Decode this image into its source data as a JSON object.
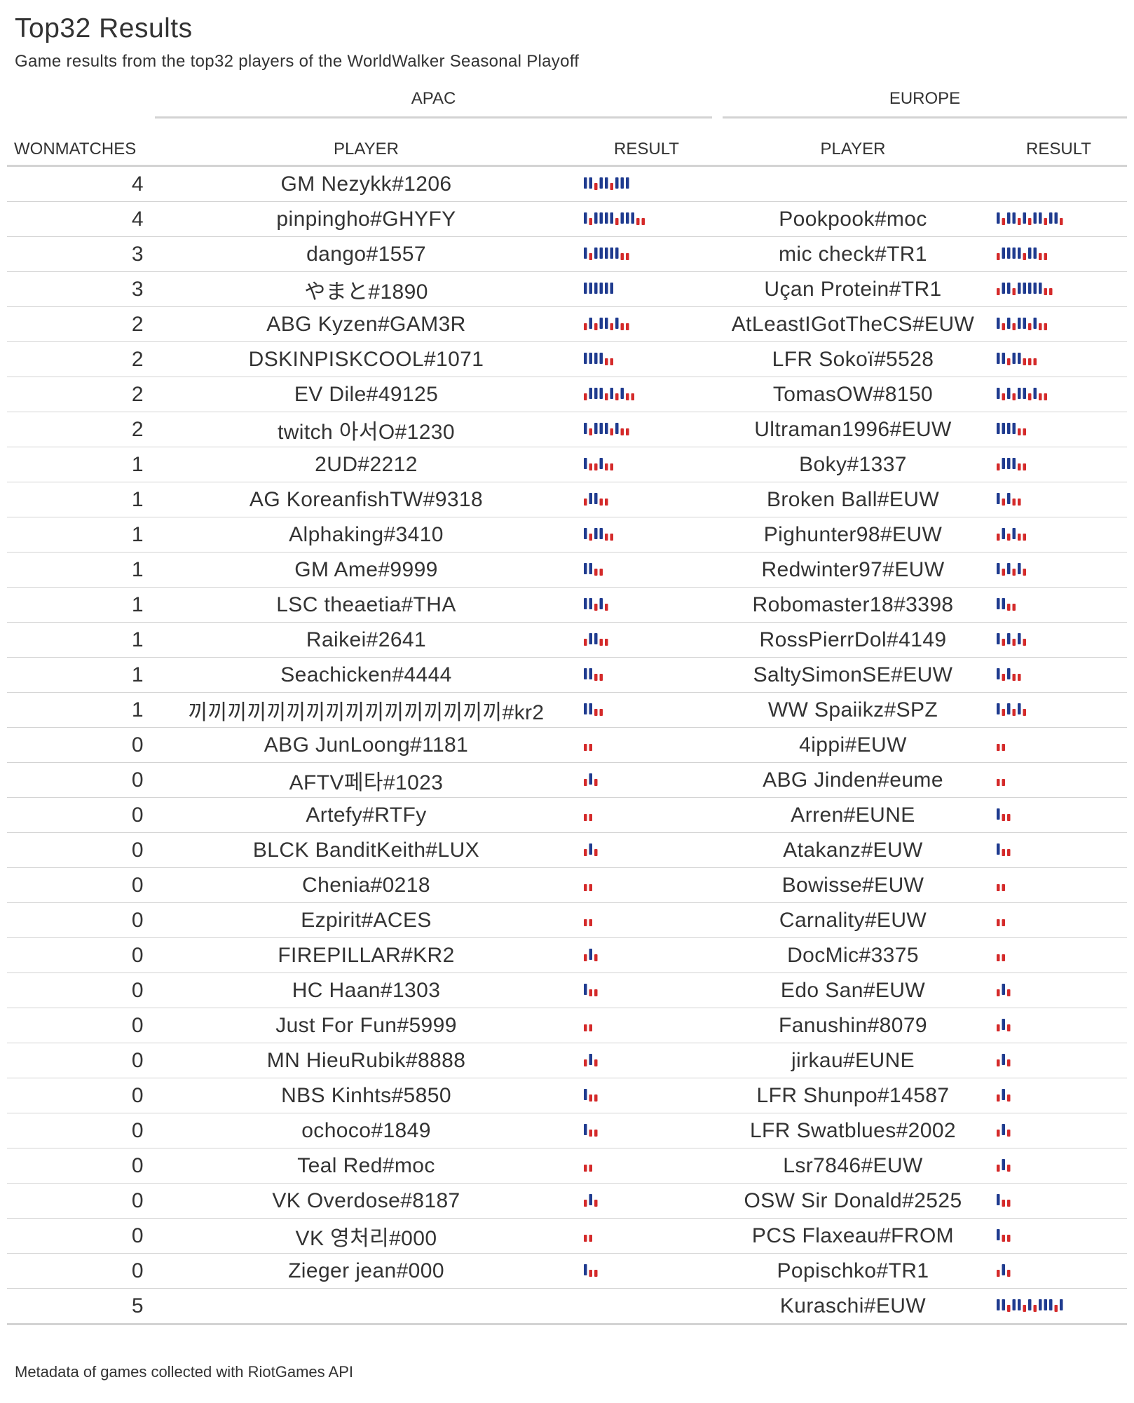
{
  "title": "Top32 Results",
  "subtitle": "Game results from the top32 players of the WorldWalker Seasonal Playoff",
  "spanners": {
    "apac": "APAC",
    "europe": "EUROPE"
  },
  "columns": {
    "won": "WONMATCHES",
    "apac_player": "PLAYER",
    "apac_result": "RESULT",
    "eu_player": "PLAYER",
    "eu_result": "RESULT"
  },
  "colors": {
    "win": "#1f3b8f",
    "loss": "#d42a2a",
    "rule": "#d3d3d3",
    "text": "#333333"
  },
  "result_encoding": "W = win (tall blue bar), L = loss (short red bar)",
  "rows": [
    {
      "won": "4",
      "apac_player": "GM Nezykk#1206",
      "apac_result": "WWLWWLWWW",
      "eu_player": "",
      "eu_result": ""
    },
    {
      "won": "4",
      "apac_player": "pinpingho#GHYFY",
      "apac_result": "WLWWWWLWWWLL",
      "eu_player": "Pookpook#moc",
      "eu_result": "WLWWLWLWWLWWL"
    },
    {
      "won": "3",
      "apac_player": "dango#1557",
      "apac_result": "WLWWWWWLL",
      "eu_player": "mic check#TR1",
      "eu_result": "LWWWWLWWLL"
    },
    {
      "won": "3",
      "apac_player": "やまと#1890",
      "apac_result": "WWWWWW",
      "eu_player": "Uçan Protein#TR1",
      "eu_result": "LWWLWWWWWLL"
    },
    {
      "won": "2",
      "apac_player": "ABG Kyzen#GAM3R",
      "apac_result": "LWLWWLWLL",
      "eu_player": "AtLeastIGotTheCS#EUW",
      "eu_result": "WLWLWWLWLL"
    },
    {
      "won": "2",
      "apac_player": "DSKINPISKCOOL#1071",
      "apac_result": "WWWWLL",
      "eu_player": "LFR Sokoï#5528",
      "eu_result": "WWLWWLLL"
    },
    {
      "won": "2",
      "apac_player": "EV Dile#49125",
      "apac_result": "LWWWLWLWLL",
      "eu_player": "TomasOW#8150",
      "eu_result": "WLWLWWLWLL"
    },
    {
      "won": "2",
      "apac_player": "twitch 아서O#1230",
      "apac_result": "WLWWWLWLL",
      "eu_player": "Ultraman1996#EUW",
      "eu_result": "WWWWLL"
    },
    {
      "won": "1",
      "apac_player": "2UD#2212",
      "apac_result": "WLLWLL",
      "eu_player": "Boky#1337",
      "eu_result": "LWWWLL"
    },
    {
      "won": "1",
      "apac_player": "AG KoreanfishTW#9318",
      "apac_result": "LWWLL",
      "eu_player": "Broken Ball#EUW",
      "eu_result": "WLWLL"
    },
    {
      "won": "1",
      "apac_player": "Alphaking#3410",
      "apac_result": "WLWWLL",
      "eu_player": "Pighunter98#EUW",
      "eu_result": "LWLWLL"
    },
    {
      "won": "1",
      "apac_player": "GM Ame#9999",
      "apac_result": "WWLL",
      "eu_player": "Redwinter97#EUW",
      "eu_result": "WLWLWL"
    },
    {
      "won": "1",
      "apac_player": "LSC theaetia#THA",
      "apac_result": "WWLWL",
      "eu_player": "Robomaster18#3398",
      "eu_result": "WWLL"
    },
    {
      "won": "1",
      "apac_player": "Raikei#2641",
      "apac_result": "LWWLL",
      "eu_player": "RossPierrDol#4149",
      "eu_result": "WLWLWL"
    },
    {
      "won": "1",
      "apac_player": "Seachicken#4444",
      "apac_result": "WWLL",
      "eu_player": "SaltySimonSE#EUW",
      "eu_result": "WLWLL"
    },
    {
      "won": "1",
      "apac_player": "끼끼끼끼끼끼끼끼끼끼끼끼끼끼끼끼#kr2",
      "apac_result": "WWLL",
      "eu_player": "WW Spaiikz#SPZ",
      "eu_result": "WLWLWL"
    },
    {
      "won": "0",
      "apac_player": "ABG JunLoong#1181",
      "apac_result": "LL",
      "eu_player": "4ippi#EUW",
      "eu_result": "LL"
    },
    {
      "won": "0",
      "apac_player": "AFTV페타#1023",
      "apac_result": "LWL",
      "eu_player": "ABG Jinden#eume",
      "eu_result": "LL"
    },
    {
      "won": "0",
      "apac_player": "Artefy#RTFy",
      "apac_result": "LL",
      "eu_player": "Arren#EUNE",
      "eu_result": "WLL"
    },
    {
      "won": "0",
      "apac_player": "BLCK BanditKeith#LUX",
      "apac_result": "LWL",
      "eu_player": "Atakanz#EUW",
      "eu_result": "WLL"
    },
    {
      "won": "0",
      "apac_player": "Chenia#0218",
      "apac_result": "LL",
      "eu_player": "Bowisse#EUW",
      "eu_result": "LL"
    },
    {
      "won": "0",
      "apac_player": "Ezpirit#ACES",
      "apac_result": "LL",
      "eu_player": "Carnality#EUW",
      "eu_result": "LL"
    },
    {
      "won": "0",
      "apac_player": "FIREPILLAR#KR2",
      "apac_result": "LWL",
      "eu_player": "DocMic#3375",
      "eu_result": "LL"
    },
    {
      "won": "0",
      "apac_player": "HC Haan#1303",
      "apac_result": "WLL",
      "eu_player": "Edo San#EUW",
      "eu_result": "LWL"
    },
    {
      "won": "0",
      "apac_player": "Just For Fun#5999",
      "apac_result": "LL",
      "eu_player": "Fanushin#8079",
      "eu_result": "LWL"
    },
    {
      "won": "0",
      "apac_player": "MN HieuRubik#8888",
      "apac_result": "LWL",
      "eu_player": "jirkau#EUNE",
      "eu_result": "LWL"
    },
    {
      "won": "0",
      "apac_player": "NBS Kinhts#5850",
      "apac_result": "WLL",
      "eu_player": "LFR Shunpo#14587",
      "eu_result": "LWL"
    },
    {
      "won": "0",
      "apac_player": "ochoco#1849",
      "apac_result": "WLL",
      "eu_player": "LFR Swatblues#2002",
      "eu_result": "LWL"
    },
    {
      "won": "0",
      "apac_player": "Teal Red#moc",
      "apac_result": "LL",
      "eu_player": "Lsr7846#EUW",
      "eu_result": "LWL"
    },
    {
      "won": "0",
      "apac_player": "VK Overdose#8187",
      "apac_result": "LWL",
      "eu_player": "OSW Sir Donald#2525",
      "eu_result": "WLL"
    },
    {
      "won": "0",
      "apac_player": "VK 영처리#000",
      "apac_result": "LL",
      "eu_player": "PCS Flaxeau#FROM",
      "eu_result": "WLL"
    },
    {
      "won": "0",
      "apac_player": "Zieger jean#000",
      "apac_result": "WLL",
      "eu_player": "Popischko#TR1",
      "eu_result": "LWL"
    },
    {
      "won": "5",
      "apac_player": "",
      "apac_result": "",
      "eu_player": "Kuraschi#EUW",
      "eu_result": "WWLWWLWLWWWLW"
    }
  ],
  "footnote": "Metadata of games collected with RiotGames API"
}
